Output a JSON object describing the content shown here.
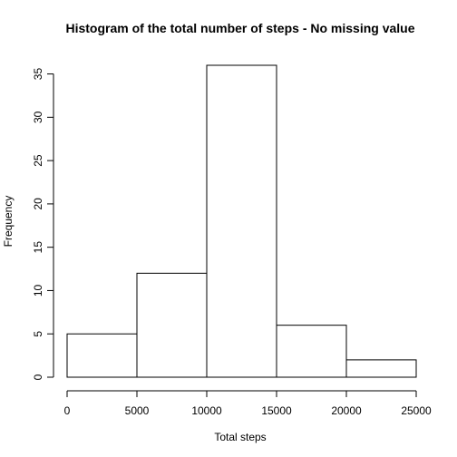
{
  "chart_data": {
    "type": "bar",
    "title": "Histogram of the total number of steps - No missing value",
    "xlabel": "Total steps",
    "ylabel": "Frequency",
    "bins": [
      {
        "from": 0,
        "to": 5000,
        "count": 5
      },
      {
        "from": 5000,
        "to": 10000,
        "count": 12
      },
      {
        "from": 10000,
        "to": 15000,
        "count": 36
      },
      {
        "from": 15000,
        "to": 20000,
        "count": 6
      },
      {
        "from": 20000,
        "to": 25000,
        "count": 2
      }
    ],
    "xlim": [
      0,
      25000
    ],
    "ylim": [
      0,
      36
    ],
    "xticks": [
      0,
      5000,
      10000,
      15000,
      20000,
      25000
    ],
    "yticks": [
      0,
      5,
      10,
      15,
      20,
      25,
      30,
      35
    ],
    "bar_fill": "#ffffff",
    "bar_stroke": "#000000",
    "grid": false
  }
}
